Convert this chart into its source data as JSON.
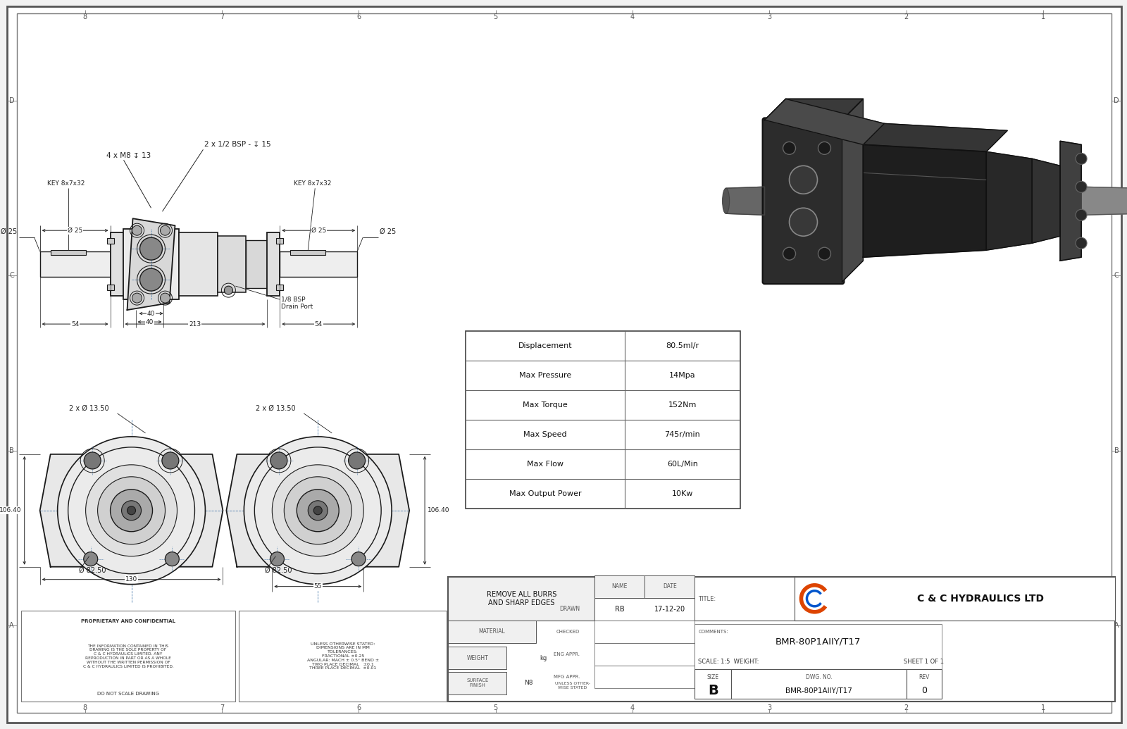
{
  "bg_color": "#f2f2f2",
  "paper_color": "#ffffff",
  "line_color": "#1a1a1a",
  "dim_color": "#222222",
  "cl_color": "#4477aa",
  "grid_color": "#888888",
  "title": "BMR-80P1AIIY/T17",
  "dwg_no": "BMR-80P1AIIY/T17",
  "scale": "1:5",
  "sheet": "SHEET 1 OF 1",
  "rev": "0",
  "size": "B",
  "drawn_by": "RB",
  "date": "17-12-20",
  "company": "C & C HYDRAULICS LTD",
  "specs": [
    [
      "Displacement",
      "80.5ml/r"
    ],
    [
      "Max Pressure",
      "14Mpa"
    ],
    [
      "Max Torque",
      "152Nm"
    ],
    [
      "Max Speed",
      "745r/min"
    ],
    [
      "Max Flow",
      "60L/Min"
    ],
    [
      "Max Output Power",
      "10Kw"
    ]
  ],
  "grid_numbers": [
    "8",
    "7",
    "6",
    "5",
    "4",
    "3",
    "2",
    "1"
  ],
  "grid_letters": [
    "D",
    "C",
    "B",
    "A"
  ]
}
